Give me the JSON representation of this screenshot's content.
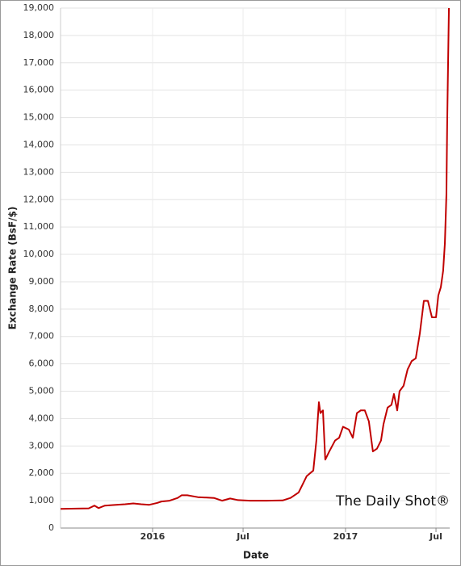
{
  "chart_data": {
    "type": "line",
    "x_label": "Date",
    "y_label": "Exchange Rate (BsF/$)",
    "annotation": "The Daily Shot®",
    "xlim": [
      2015.523,
      2017.54
    ],
    "xticks": [
      {
        "value": 2016,
        "label": "2016"
      },
      {
        "value": 2016.469,
        "label": "Jul"
      },
      {
        "value": 2017,
        "label": "2017"
      },
      {
        "value": 2017.469,
        "label": "Jul"
      }
    ],
    "ylim": [
      0,
      19000
    ],
    "yticks": [
      0,
      {
        "value": 1000,
        "label": "1,000"
      },
      {
        "value": 2000,
        "label": "2,000"
      },
      {
        "value": 3000,
        "label": "3,000"
      },
      {
        "value": 4000,
        "label": "4,000"
      },
      {
        "value": 5000,
        "label": "5,000"
      },
      {
        "value": 6000,
        "label": "6,000"
      },
      {
        "value": 7000,
        "label": "7,000"
      },
      {
        "value": 8000,
        "label": "8,000"
      },
      {
        "value": 9000,
        "label": "9,000"
      },
      {
        "value": 10000,
        "label": "10,000"
      },
      {
        "value": 11000,
        "label": "11,000"
      },
      {
        "value": 12000,
        "label": "12,000"
      },
      {
        "value": 13000,
        "label": "13,000"
      },
      {
        "value": 14000,
        "label": "14,000"
      },
      {
        "value": 15000,
        "label": "15,000"
      },
      {
        "value": 16000,
        "label": "16,000"
      },
      {
        "value": 17000,
        "label": "17,000"
      },
      {
        "value": 18000,
        "label": "18,000"
      },
      {
        "value": 19000,
        "label": "19,000"
      }
    ],
    "grid": true,
    "color": "#c00000",
    "x": [
      2015.523,
      2015.607,
      2015.669,
      2015.699,
      2015.72,
      2015.753,
      2015.795,
      2015.858,
      2015.9,
      2015.941,
      2015.983,
      2016.025,
      2016.046,
      2016.088,
      2016.13,
      2016.151,
      2016.18,
      2016.234,
      2016.318,
      2016.36,
      2016.402,
      2016.444,
      2016.506,
      2016.59,
      2016.674,
      2016.715,
      2016.757,
      2016.778,
      2016.799,
      2016.833,
      2016.849,
      2016.862,
      2016.87,
      2016.883,
      2016.895,
      2016.916,
      2016.946,
      2016.967,
      2016.987,
      2017.017,
      2017.038,
      2017.059,
      2017.079,
      2017.1,
      2017.121,
      2017.142,
      2017.163,
      2017.184,
      2017.197,
      2017.218,
      2017.238,
      2017.251,
      2017.268,
      2017.28,
      2017.301,
      2017.322,
      2017.343,
      2017.364,
      2017.385,
      2017.406,
      2017.427,
      2017.448,
      2017.469,
      2017.481,
      2017.494,
      2017.506,
      2017.515,
      2017.523,
      2017.527,
      2017.536
    ],
    "values": [
      700,
      710,
      720,
      820,
      730,
      820,
      840,
      870,
      900,
      870,
      850,
      920,
      970,
      1000,
      1100,
      1200,
      1200,
      1130,
      1100,
      1000,
      1080,
      1020,
      1000,
      1000,
      1010,
      1100,
      1300,
      1600,
      1900,
      2100,
      3200,
      4600,
      4200,
      4300,
      2500,
      2800,
      3200,
      3300,
      3700,
      3600,
      3300,
      4200,
      4300,
      4300,
      3900,
      2800,
      2900,
      3200,
      3800,
      4400,
      4500,
      4900,
      4300,
      5000,
      5200,
      5800,
      6100,
      6200,
      7100,
      8300,
      8300,
      7700,
      7700,
      8500,
      8800,
      9400,
      10400,
      12200,
      14800,
      19000
    ]
  }
}
